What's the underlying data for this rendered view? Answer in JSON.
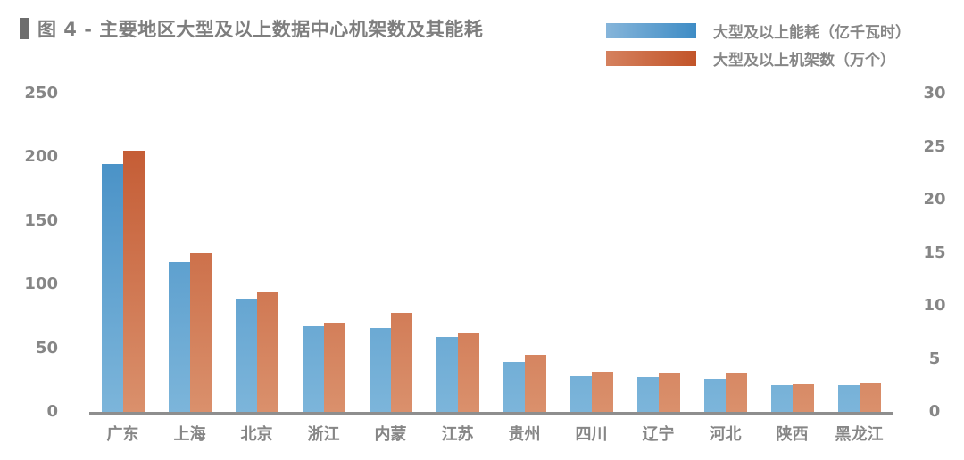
{
  "chart_data": {
    "type": "bar",
    "title": "图 4 - 主要地区大型及以上数据中心机架数及其能耗",
    "categories": [
      "广东",
      "上海",
      "北京",
      "浙江",
      "内蒙",
      "江苏",
      "贵州",
      "四川",
      "辽宁",
      "河北",
      "陕西",
      "黑龙江"
    ],
    "series": [
      {
        "name": "大型及以上能耗（亿千瓦时）",
        "axis": "left",
        "unit": "亿千瓦时",
        "color_top": "#3d89c2",
        "color_bottom": "#7cb5da",
        "values": [
          195,
          118,
          89,
          67,
          66,
          59,
          39,
          28,
          27,
          26,
          21,
          21
        ]
      },
      {
        "name": "大型及以上机架数（万个）",
        "axis": "right",
        "unit": "万个",
        "color_top": "#c0522a",
        "color_bottom": "#da906c",
        "values": [
          24.6,
          15,
          11.3,
          8.4,
          9.3,
          7.4,
          5.4,
          3.8,
          3.7,
          3.7,
          2.6,
          2.7
        ]
      }
    ],
    "left_axis": {
      "min": 0,
      "max": 250,
      "ticks": [
        0,
        50,
        100,
        150,
        200,
        250
      ]
    },
    "right_axis": {
      "min": 0,
      "max": 30,
      "ticks": [
        0,
        5,
        10,
        15,
        20,
        25,
        30
      ]
    },
    "legend_position": "top-right",
    "grid": false
  },
  "style": {
    "title_color": "#7e7e7e",
    "label_color": "#868686",
    "axis_line_color": "#8e8e8e",
    "marker_color": "#6d6d6d",
    "background": "#ffffff"
  }
}
